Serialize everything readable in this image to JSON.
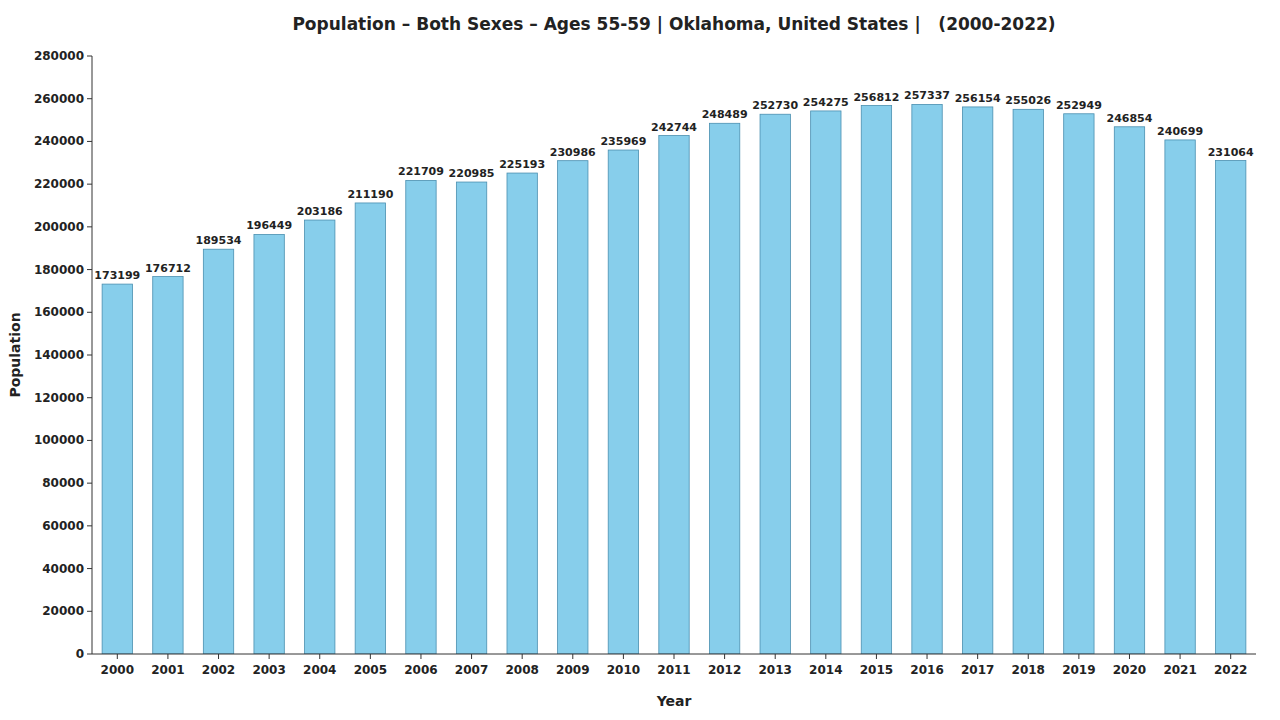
{
  "chart_data": {
    "type": "bar",
    "title": "Population – Both Sexes – Ages 55-59 | Oklahoma, United States |   (2000-2022)",
    "x_label": "Year",
    "y_label": "Population",
    "categories": [
      "2000",
      "2001",
      "2002",
      "2003",
      "2004",
      "2005",
      "2006",
      "2007",
      "2008",
      "2009",
      "2010",
      "2011",
      "2012",
      "2013",
      "2014",
      "2015",
      "2016",
      "2017",
      "2018",
      "2019",
      "2020",
      "2021",
      "2022"
    ],
    "values": [
      173199,
      176712,
      189534,
      196449,
      203186,
      211190,
      221709,
      220985,
      225193,
      230986,
      235969,
      242744,
      248489,
      252730,
      254275,
      256812,
      257337,
      256154,
      255026,
      252949,
      246854,
      240699,
      231064
    ],
    "color": "#87ceeb",
    "ylim": [
      0,
      280000
    ],
    "yticks": [
      0,
      20000,
      40000,
      60000,
      80000,
      100000,
      120000,
      140000,
      160000,
      180000,
      200000,
      220000,
      240000,
      260000,
      280000
    ],
    "grid": false,
    "data_labels": true
  }
}
